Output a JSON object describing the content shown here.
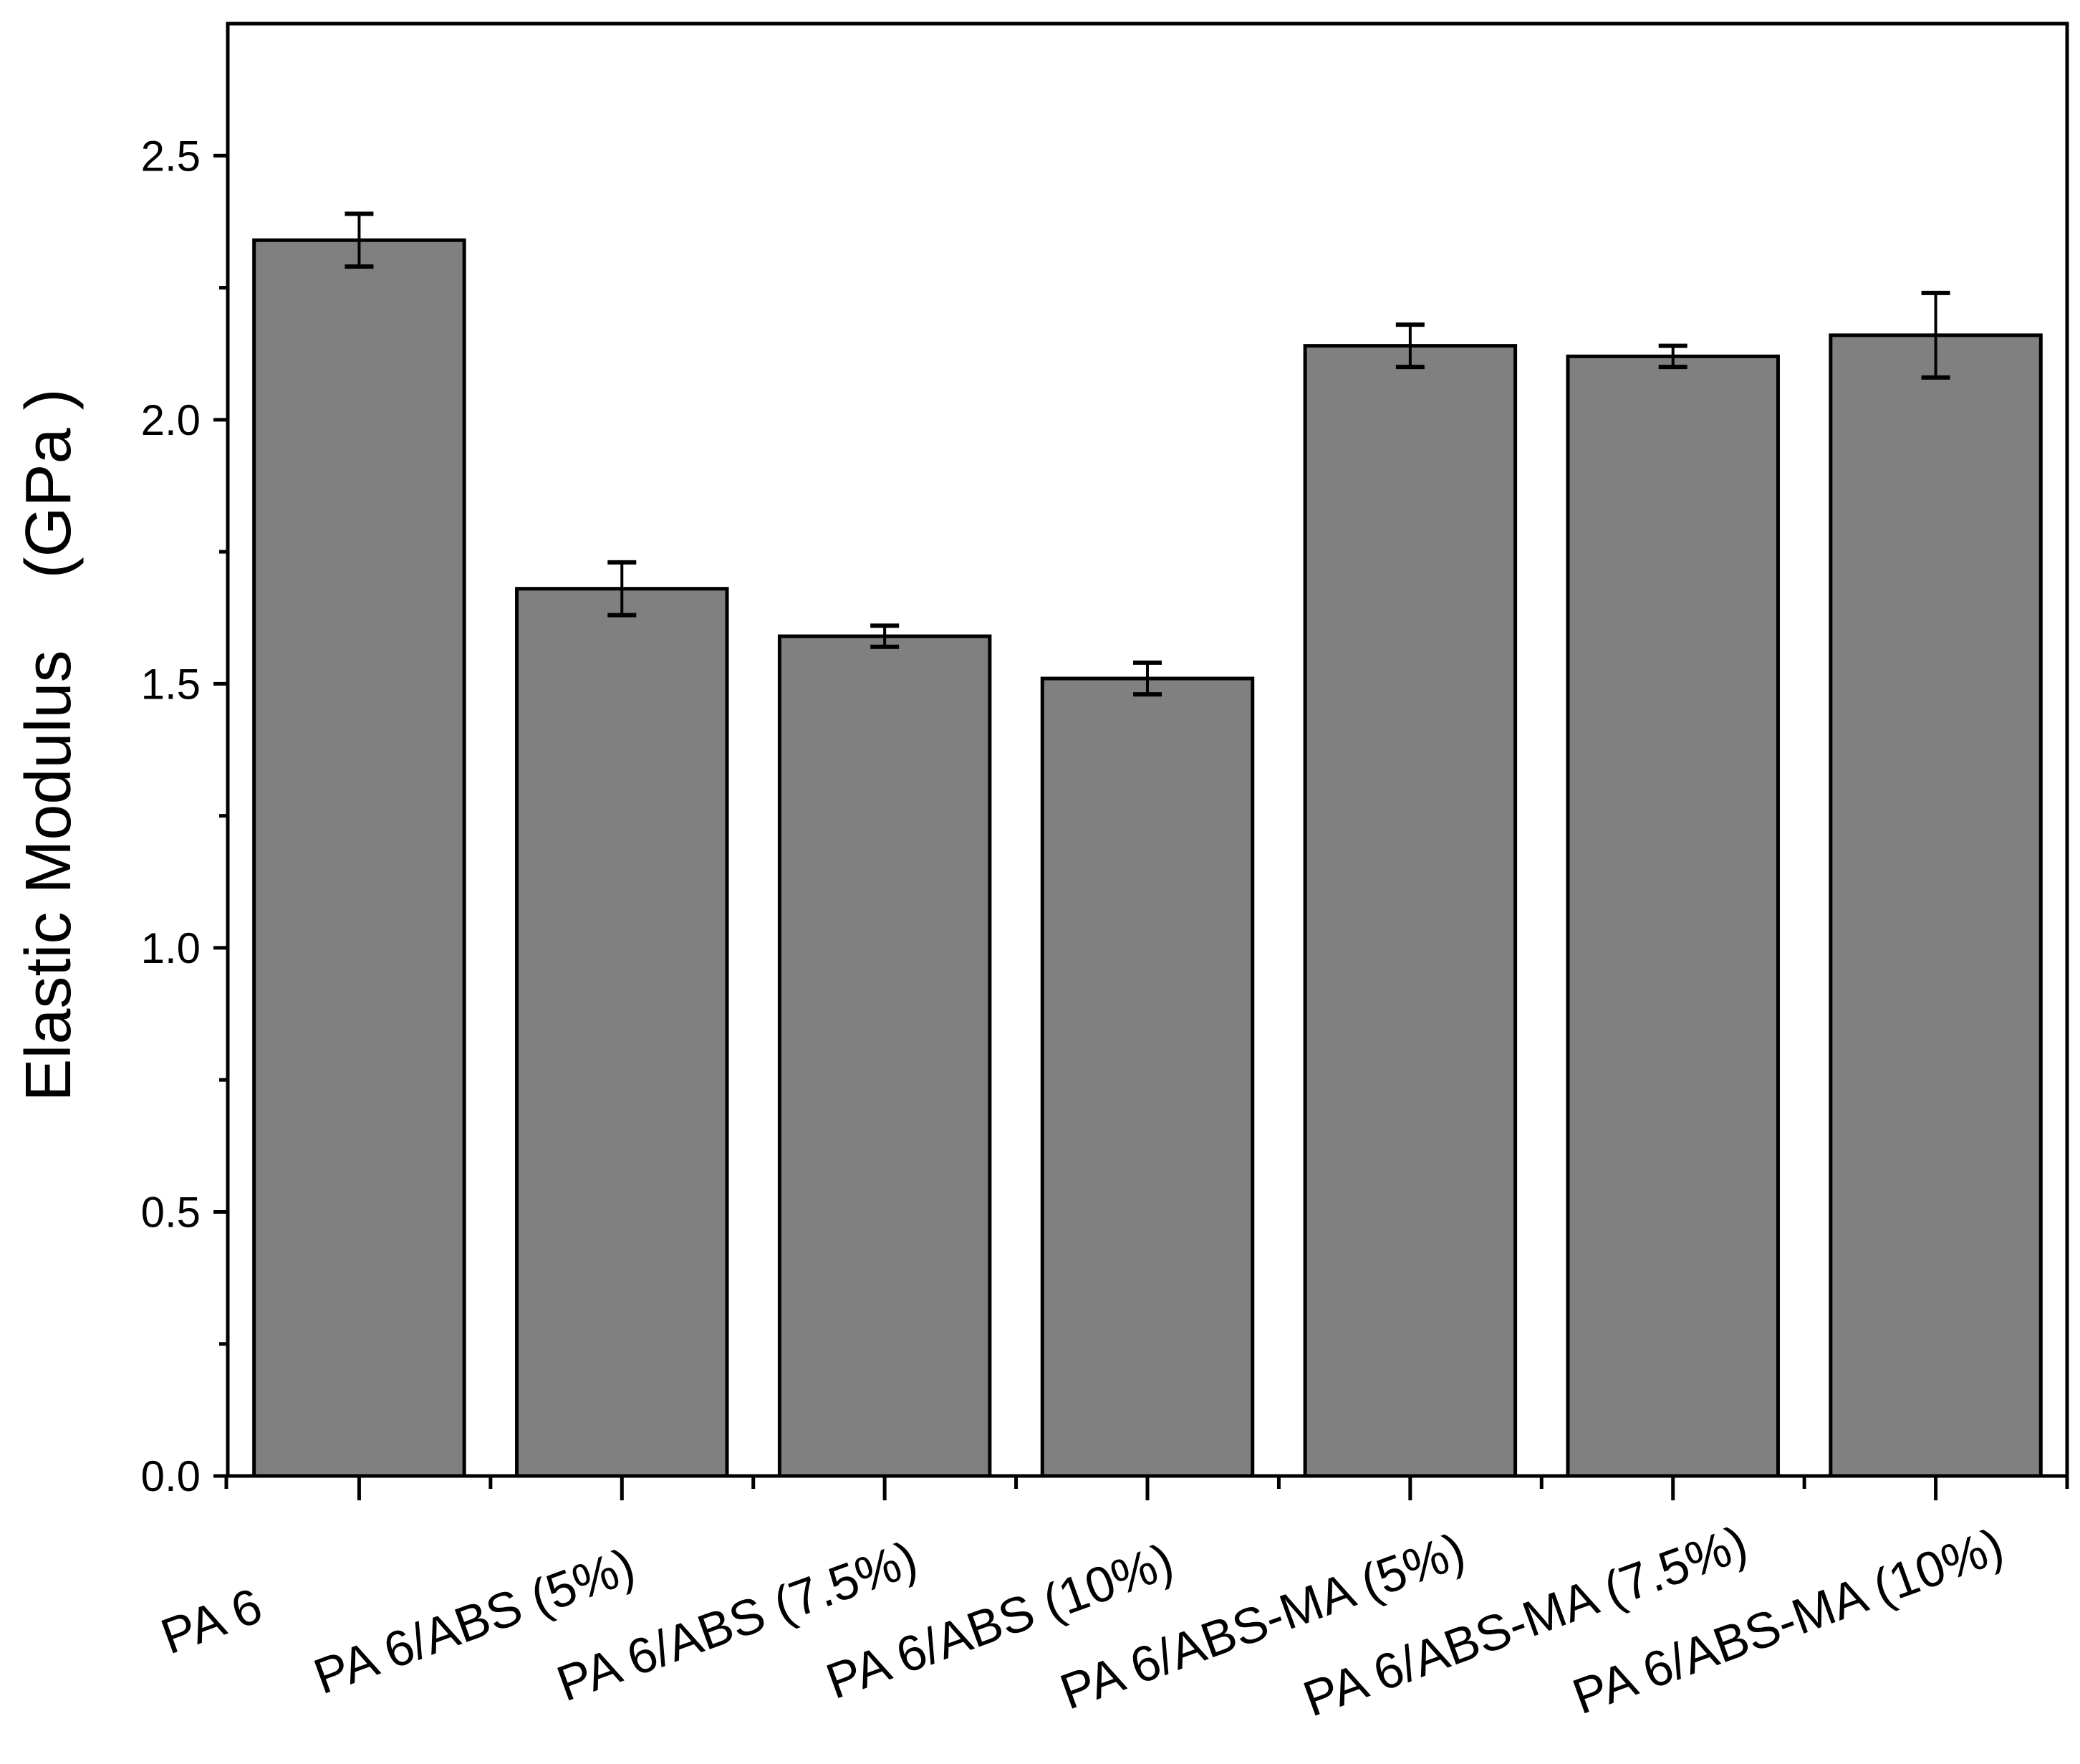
{
  "chart_data": {
    "type": "bar",
    "title": "",
    "xlabel": "",
    "ylabel": "Elastic Modulus    (GPa )",
    "categories": [
      "PA 6",
      "PA 6/ABS (5%)",
      "PA 6/ABS (7.5%)",
      "PA 6/ABS (10%)",
      "PA 6/ABS-MA (5%)",
      "PA 6/ABS-MA (7.5%)",
      "PA 6/ABS-MA (10%)"
    ],
    "values": [
      2.34,
      1.68,
      1.59,
      1.51,
      2.14,
      2.12,
      2.16
    ],
    "errors": [
      0.05,
      0.05,
      0.02,
      0.03,
      0.04,
      0.02,
      0.08
    ],
    "ylim": [
      0,
      2.75
    ],
    "yticks": [
      "0.0",
      "0.5",
      "1.0",
      "1.5",
      "2.0",
      "2.5"
    ],
    "ytick_values": [
      0,
      0.5,
      1.0,
      1.5,
      2.0,
      2.5
    ],
    "grid": false,
    "legend": "none",
    "colors": {
      "bar_fill": "#808080",
      "bar_edge": "#000000",
      "axis": "#000000"
    }
  }
}
